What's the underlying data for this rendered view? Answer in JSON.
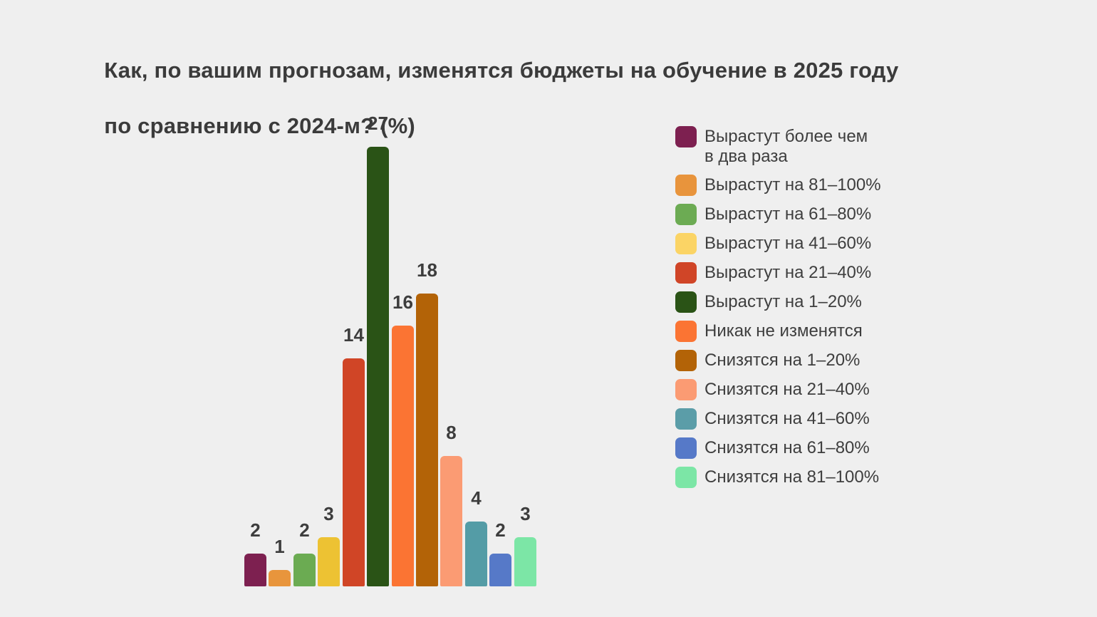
{
  "title": {
    "line1": "Как, по вашим прогнозам, изменятся бюджеты на обучение в 2025 году",
    "line2": "по сравнению с 2024-м? (%)"
  },
  "colors": {
    "background": "#EFEFEF",
    "title_text": "#3B3B3B",
    "value_label_text": "#3D3D3D",
    "legend_text": "#3E3E3E"
  },
  "chart_data": {
    "type": "bar",
    "title": "Как, по вашим прогнозам, изменятся бюджеты на обучение в 2025 году по сравнению с 2024-м? (%)",
    "categories": [
      "Вырастут более чем в два раза",
      "Вырастут на 81–100%",
      "Вырастут на 61–80%",
      "Вырастут на 41–60%",
      "Вырастут на 21–40%",
      "Вырастут на 1–20%",
      "Никак не изменятся",
      "Снизятся на 1–20%",
      "Снизятся на 21–40%",
      "Снизятся на 41–60%",
      "Снизятся на 61–80%",
      "Снизятся на 81–100%"
    ],
    "values": [
      2,
      1,
      2,
      3,
      14,
      27,
      16,
      18,
      8,
      4,
      2,
      3
    ],
    "bar_colors": [
      "#7D2050",
      "#E8953C",
      "#6BAB52",
      "#EDC233",
      "#D04526",
      "#2A5316",
      "#FB7433",
      "#B36307",
      "#FB9B73",
      "#549CA6",
      "#5679C8",
      "#7CE6A6"
    ],
    "xlabel": "",
    "ylabel": "",
    "ylim": [
      0,
      27
    ],
    "grid": false,
    "axes_shown": false,
    "value_labels_shown": true,
    "legend_position": "right",
    "legend": {
      "items": [
        {
          "label": "Вырастут более чем\nв два раза",
          "color": "#7D2050"
        },
        {
          "label": "Вырастут на 81–100%",
          "color": "#E8943C"
        },
        {
          "label": "Вырастут на 61–80%",
          "color": "#6CAB53"
        },
        {
          "label": "Вырастут на 41–60%",
          "color": "#FBD465"
        },
        {
          "label": "Вырастут на 21–40%",
          "color": "#D04527"
        },
        {
          "label": "Вырастут на 1–20%",
          "color": "#2A5316"
        },
        {
          "label": "Никак не изменятся",
          "color": "#FB7433"
        },
        {
          "label": "Снизятся на 1–20%",
          "color": "#B36307"
        },
        {
          "label": "Снизятся на 21–40%",
          "color": "#FB9B73"
        },
        {
          "label": "Снизятся на 41–60%",
          "color": "#5B9DA8"
        },
        {
          "label": "Снизятся на 61–80%",
          "color": "#5679C8"
        },
        {
          "label": "Снизятся на 81–100%",
          "color": "#7CE6A6"
        }
      ]
    }
  }
}
